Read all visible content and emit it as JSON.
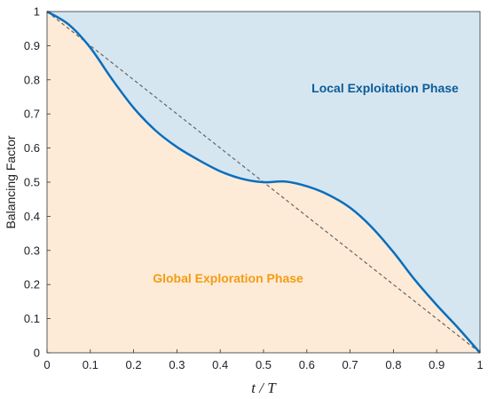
{
  "chart_data": {
    "type": "area",
    "xlabel": "t / T",
    "ylabel": "Balancing Factor",
    "xlim": [
      0,
      1
    ],
    "ylim": [
      0,
      1
    ],
    "x_ticks": [
      "0",
      "0.1",
      "0.2",
      "0.3",
      "0.4",
      "0.5",
      "0.6",
      "0.7",
      "0.8",
      "0.9",
      "1"
    ],
    "y_ticks": [
      "0",
      "0.1",
      "0.2",
      "0.3",
      "0.4",
      "0.5",
      "0.6",
      "0.7",
      "0.8",
      "0.9",
      "1"
    ],
    "grid": false,
    "series": [
      {
        "x": [
          0,
          0.05,
          0.1,
          0.15,
          0.2,
          0.25,
          0.3,
          0.35,
          0.4,
          0.45,
          0.5,
          0.55,
          0.6,
          0.65,
          0.7,
          0.75,
          0.8,
          0.85,
          0.9,
          0.95,
          1.0
        ],
        "y": [
          1.0,
          0.962,
          0.894,
          0.802,
          0.718,
          0.652,
          0.603,
          0.565,
          0.532,
          0.51,
          0.5,
          0.502,
          0.488,
          0.463,
          0.425,
          0.368,
          0.295,
          0.213,
          0.14,
          0.072,
          0.0
        ],
        "color": "#0a6ebd",
        "style": "solid"
      },
      {
        "x": [
          0,
          1
        ],
        "y": [
          1,
          0
        ],
        "color": "#666666",
        "style": "dashed"
      }
    ],
    "regions": [
      {
        "label": "Local Exploitation Phase",
        "color": "#d6e6f0",
        "text_color": "#0b5c99"
      },
      {
        "label": "Global Exploration Phase",
        "color": "#fdebd8",
        "text_color": "#f39c12"
      }
    ]
  }
}
